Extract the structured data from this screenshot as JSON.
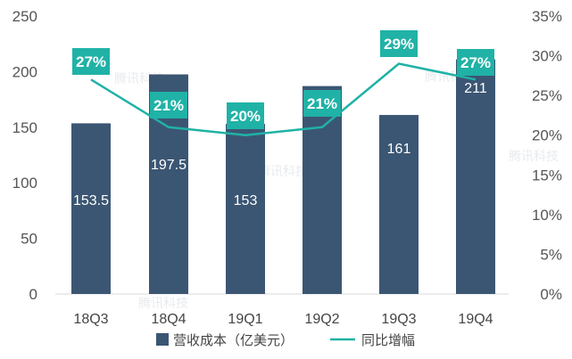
{
  "chart_data": {
    "type": "bar",
    "categories": [
      "18Q3",
      "18Q4",
      "19Q1",
      "19Q2",
      "19Q3",
      "19Q4"
    ],
    "series": [
      {
        "name": "营收成本（亿美元）",
        "type": "bar",
        "axis": "left",
        "values": [
          153.5,
          197.5,
          153,
          187,
          161,
          211
        ],
        "labels": [
          "153.5",
          "197.5",
          "153",
          "",
          "161",
          "211"
        ],
        "color": "#3b5673"
      },
      {
        "name": "同比增幅",
        "type": "line",
        "axis": "right",
        "values": [
          27,
          21,
          20,
          21,
          29,
          27
        ],
        "labels": [
          "27%",
          "21%",
          "20%",
          "21%",
          "29%",
          "27%"
        ],
        "color": "#20b2a6"
      }
    ],
    "y_left": {
      "min": 0,
      "max": 250,
      "ticks": [
        "0",
        "50",
        "100",
        "150",
        "200",
        "250"
      ]
    },
    "y_right": {
      "min": 0,
      "max": 35,
      "ticks": [
        "0%",
        "5%",
        "10%",
        "15%",
        "20%",
        "25%",
        "30%",
        "35%"
      ]
    },
    "grid": false,
    "legend_position": "bottom",
    "watermark": "腾讯科技"
  }
}
